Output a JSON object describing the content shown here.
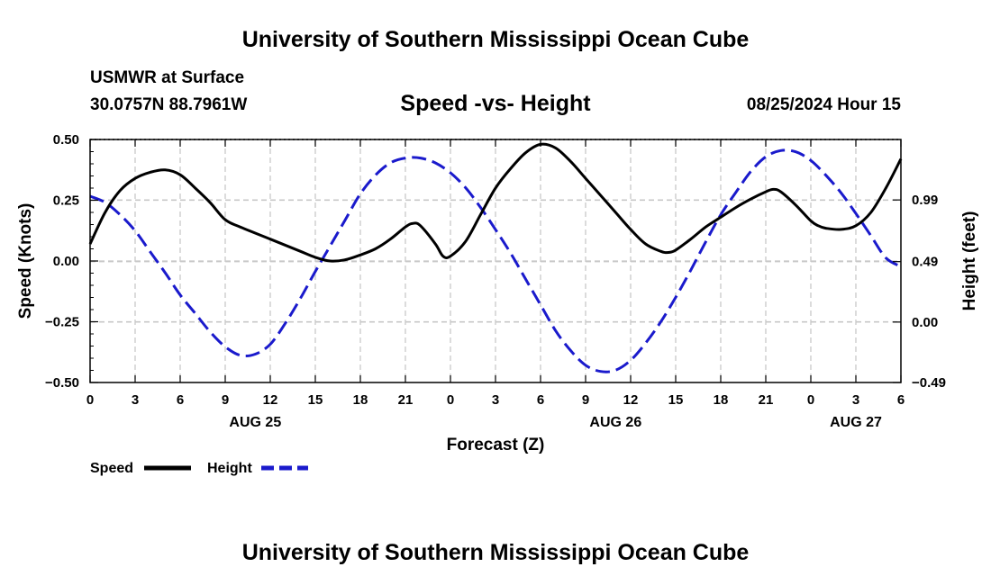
{
  "header": {
    "top_title": "University of Southern Mississippi Ocean Cube",
    "station": "USMWR at Surface",
    "coords": "30.0757N  88.7961W",
    "chart_title": "Speed -vs- Height",
    "datetime": "08/25/2024 Hour 15",
    "bottom_title": "University of Southern Mississippi Ocean Cube"
  },
  "colors": {
    "speed": "#000000",
    "height": "#1a1acc",
    "grid": "#c8c8c8"
  },
  "chart_data": {
    "type": "line",
    "title": "Speed -vs- Height",
    "xlabel": "Forecast (Z)",
    "ylabel": "Speed (Knots)",
    "y2label": "Height (feet)",
    "xlim": [
      0,
      54
    ],
    "ylim": [
      -0.5,
      0.5
    ],
    "y2lim": [
      -0.49,
      1.48
    ],
    "x_ticks": [
      0,
      3,
      6,
      9,
      12,
      15,
      18,
      21,
      24,
      27,
      30,
      33,
      36,
      39,
      42,
      45,
      48,
      51,
      54
    ],
    "x_tick_labels": [
      "0",
      "3",
      "6",
      "9",
      "12",
      "15",
      "18",
      "21",
      "0",
      "3",
      "6",
      "9",
      "12",
      "15",
      "18",
      "21",
      "0",
      "3",
      "6"
    ],
    "day_labels": [
      {
        "x": 11,
        "label": "AUG 25"
      },
      {
        "x": 35,
        "label": "AUG 26"
      },
      {
        "x": 51,
        "label": "AUG 27"
      }
    ],
    "y_ticks": [
      0.5,
      0.25,
      0.0,
      -0.25,
      -0.5
    ],
    "y_tick_labels": [
      "0.50",
      "0.25",
      "0.00",
      "−0.25",
      "−0.50"
    ],
    "y2_ticks": [
      0.99,
      0.49,
      0.0,
      -0.49
    ],
    "y2_tick_labels": [
      "0.99",
      "0.49",
      "0.00",
      "−0.49"
    ],
    "legend": [
      {
        "name": "Speed",
        "style": "solid",
        "color": "#000000"
      },
      {
        "name": "Height",
        "style": "dashed",
        "color": "#1a1acc"
      }
    ],
    "series": [
      {
        "name": "Speed",
        "axis": "left",
        "x": [
          0,
          1,
          2,
          3,
          4,
          5,
          6,
          7,
          8,
          9,
          10,
          12,
          14,
          15,
          16,
          17,
          18,
          19,
          20,
          21,
          21.5,
          22,
          23,
          23.5,
          24,
          25,
          26,
          27,
          28,
          29,
          30,
          31,
          32,
          33,
          34,
          35,
          36,
          37,
          38,
          38.5,
          39,
          40,
          41,
          42,
          43,
          44,
          45,
          45.5,
          46,
          47,
          48,
          48.5,
          49,
          50,
          51,
          52,
          53,
          54
        ],
        "values": [
          0.07,
          0.2,
          0.29,
          0.34,
          0.365,
          0.375,
          0.355,
          0.3,
          0.24,
          0.17,
          0.14,
          0.09,
          0.04,
          0.015,
          0.0,
          0.005,
          0.025,
          0.05,
          0.09,
          0.14,
          0.155,
          0.145,
          0.07,
          0.02,
          0.02,
          0.08,
          0.19,
          0.3,
          0.38,
          0.445,
          0.48,
          0.465,
          0.41,
          0.34,
          0.27,
          0.2,
          0.13,
          0.07,
          0.04,
          0.035,
          0.045,
          0.09,
          0.14,
          0.18,
          0.22,
          0.255,
          0.285,
          0.295,
          0.285,
          0.23,
          0.165,
          0.145,
          0.135,
          0.13,
          0.145,
          0.2,
          0.3,
          0.42
        ]
      },
      {
        "name": "Height",
        "axis": "right",
        "x": [
          0,
          1,
          2,
          3,
          4,
          5,
          6,
          7,
          8,
          9,
          10,
          11,
          12,
          13,
          14,
          15,
          16,
          17,
          18,
          19,
          20,
          21,
          22,
          23,
          24,
          25,
          26,
          27,
          28,
          29,
          30,
          31,
          32,
          33,
          34,
          35,
          36,
          37,
          38,
          39,
          40,
          41,
          42,
          43,
          44,
          45,
          46,
          47,
          48,
          49,
          50,
          51,
          52,
          53,
          54
        ],
        "values": [
          1.02,
          0.97,
          0.87,
          0.74,
          0.57,
          0.4,
          0.22,
          0.07,
          -0.08,
          -0.2,
          -0.27,
          -0.26,
          -0.18,
          -0.01,
          0.19,
          0.41,
          0.62,
          0.83,
          1.04,
          1.19,
          1.29,
          1.33,
          1.33,
          1.29,
          1.21,
          1.09,
          0.93,
          0.75,
          0.56,
          0.35,
          0.14,
          -0.07,
          -0.23,
          -0.35,
          -0.4,
          -0.39,
          -0.31,
          -0.17,
          0.0,
          0.2,
          0.42,
          0.65,
          0.87,
          1.05,
          1.22,
          1.34,
          1.39,
          1.38,
          1.31,
          1.19,
          1.05,
          0.88,
          0.7,
          0.52,
          0.45
        ]
      }
    ]
  }
}
